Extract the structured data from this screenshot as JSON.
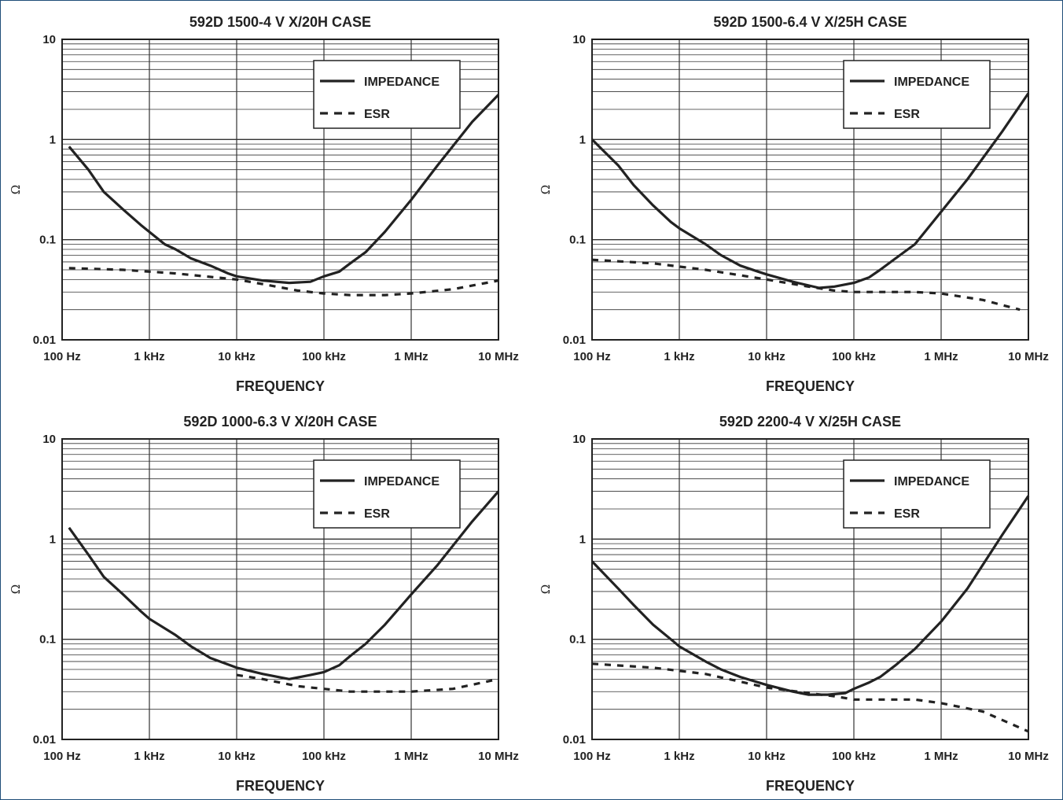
{
  "colors": {
    "ink": "#222222",
    "grid": "#333333",
    "frame": "#1f4e79",
    "background": "#ffffff"
  },
  "chart_data": [
    {
      "type": "line",
      "title": "592D 1500-4 V X/20H CASE",
      "xlabel": "FREQUENCY",
      "ylabel": "Ω",
      "xscale": "log",
      "yscale": "log",
      "xlim": [
        100,
        10000000
      ],
      "ylim": [
        0.01,
        10
      ],
      "x_tick_labels": [
        "100 Hz",
        "1 kHz",
        "10 kHz",
        "100 kHz",
        "1 MHz",
        "10 MHz"
      ],
      "y_tick_labels": [
        "0.01",
        "0.1",
        "1",
        "10"
      ],
      "grid": true,
      "legend": "top-right",
      "series": [
        {
          "name": "IMPEDANCE",
          "style": "solid",
          "x": [
            120,
            200,
            300,
            500,
            800,
            1500,
            2000,
            3000,
            5000,
            8000,
            10000,
            20000,
            40000,
            70000,
            100000,
            150000,
            200000,
            300000,
            500000,
            1000000,
            2000000,
            5000000,
            10000000
          ],
          "y": [
            0.85,
            0.5,
            0.3,
            0.2,
            0.14,
            0.09,
            0.08,
            0.065,
            0.055,
            0.046,
            0.043,
            0.039,
            0.037,
            0.038,
            0.043,
            0.048,
            0.058,
            0.075,
            0.12,
            0.25,
            0.55,
            1.5,
            2.8
          ]
        },
        {
          "name": "ESR",
          "style": "dashed",
          "x": [
            120,
            500,
            2000,
            10000,
            20000,
            50000,
            100000,
            200000,
            500000,
            1000000,
            3000000,
            10000000
          ],
          "y": [
            0.052,
            0.05,
            0.046,
            0.04,
            0.036,
            0.031,
            0.029,
            0.028,
            0.028,
            0.029,
            0.032,
            0.039
          ]
        }
      ]
    },
    {
      "type": "line",
      "title": "592D 1500-6.4 V X/25H CASE",
      "xlabel": "FREQUENCY",
      "ylabel": "Ω",
      "xscale": "log",
      "yscale": "log",
      "xlim": [
        100,
        10000000
      ],
      "ylim": [
        0.01,
        10
      ],
      "x_tick_labels": [
        "100 Hz",
        "1 kHz",
        "10 kHz",
        "100 kHz",
        "1 MHz",
        "10 MHz"
      ],
      "y_tick_labels": [
        "0.01",
        "0.1",
        "1",
        "10"
      ],
      "grid": true,
      "legend": "top-right",
      "series": [
        {
          "name": "IMPEDANCE",
          "style": "solid",
          "x": [
            100,
            200,
            300,
            500,
            800,
            1000,
            2000,
            3000,
            5000,
            8000,
            10000,
            20000,
            40000,
            60000,
            100000,
            150000,
            200000,
            300000,
            500000,
            1000000,
            2000000,
            5000000,
            10000000
          ],
          "y": [
            1.0,
            0.55,
            0.35,
            0.22,
            0.15,
            0.13,
            0.09,
            0.07,
            0.055,
            0.048,
            0.045,
            0.038,
            0.033,
            0.034,
            0.037,
            0.042,
            0.05,
            0.065,
            0.09,
            0.19,
            0.4,
            1.2,
            2.9
          ]
        },
        {
          "name": "ESR",
          "style": "dashed",
          "x": [
            100,
            500,
            2000,
            10000,
            30000,
            60000,
            100000,
            200000,
            500000,
            1000000,
            3000000,
            8000000
          ],
          "y": [
            0.063,
            0.058,
            0.05,
            0.04,
            0.034,
            0.031,
            0.03,
            0.03,
            0.03,
            0.029,
            0.025,
            0.02
          ]
        }
      ]
    },
    {
      "type": "line",
      "title": "592D 1000-6.3 V X/20H CASE",
      "xlabel": "FREQUENCY",
      "ylabel": "Ω",
      "xscale": "log",
      "yscale": "log",
      "xlim": [
        100,
        10000000
      ],
      "ylim": [
        0.01,
        10
      ],
      "x_tick_labels": [
        "100 Hz",
        "1 kHz",
        "10 kHz",
        "100 kHz",
        "1 MHz",
        "10 MHz"
      ],
      "y_tick_labels": [
        "0.01",
        "0.1",
        "1",
        "10"
      ],
      "grid": true,
      "legend": "top-right",
      "series": [
        {
          "name": "IMPEDANCE",
          "style": "solid",
          "x": [
            120,
            200,
            300,
            500,
            800,
            1000,
            2000,
            3000,
            5000,
            10000,
            20000,
            40000,
            70000,
            100000,
            150000,
            200000,
            300000,
            500000,
            1000000,
            2000000,
            5000000,
            10000000
          ],
          "y": [
            1.3,
            0.7,
            0.42,
            0.28,
            0.19,
            0.16,
            0.11,
            0.085,
            0.065,
            0.052,
            0.045,
            0.04,
            0.044,
            0.047,
            0.055,
            0.068,
            0.09,
            0.14,
            0.28,
            0.55,
            1.5,
            3.0
          ]
        },
        {
          "name": "ESR",
          "style": "dashed",
          "x": [
            10000,
            20000,
            50000,
            100000,
            200000,
            500000,
            1000000,
            3000000,
            10000000
          ],
          "y": [
            0.044,
            0.04,
            0.034,
            0.032,
            0.03,
            0.03,
            0.03,
            0.032,
            0.04
          ]
        }
      ]
    },
    {
      "type": "line",
      "title": "592D 2200-4 V X/25H CASE",
      "xlabel": "FREQUENCY",
      "ylabel": "Ω",
      "xscale": "log",
      "yscale": "log",
      "xlim": [
        100,
        10000000
      ],
      "ylim": [
        0.01,
        10
      ],
      "x_tick_labels": [
        "100 Hz",
        "1 kHz",
        "10 kHz",
        "100 kHz",
        "1 MHz",
        "10 MHz"
      ],
      "y_tick_labels": [
        "0.01",
        "0.1",
        "1",
        "10"
      ],
      "grid": true,
      "legend": "top-right",
      "series": [
        {
          "name": "IMPEDANCE",
          "style": "solid",
          "x": [
            100,
            200,
            300,
            500,
            800,
            1000,
            2000,
            3000,
            5000,
            10000,
            20000,
            30000,
            50000,
            80000,
            100000,
            150000,
            200000,
            300000,
            500000,
            1000000,
            2000000,
            5000000,
            10000000
          ],
          "y": [
            0.6,
            0.32,
            0.22,
            0.14,
            0.1,
            0.085,
            0.06,
            0.05,
            0.042,
            0.035,
            0.03,
            0.028,
            0.028,
            0.029,
            0.032,
            0.037,
            0.042,
            0.055,
            0.08,
            0.15,
            0.32,
            1.1,
            2.7
          ]
        },
        {
          "name": "ESR",
          "style": "dashed",
          "x": [
            100,
            500,
            2000,
            10000,
            30000,
            60000,
            100000,
            200000,
            500000,
            1000000,
            3000000,
            10000000
          ],
          "y": [
            0.057,
            0.052,
            0.045,
            0.033,
            0.029,
            0.027,
            0.025,
            0.025,
            0.025,
            0.023,
            0.019,
            0.012
          ]
        }
      ]
    }
  ]
}
